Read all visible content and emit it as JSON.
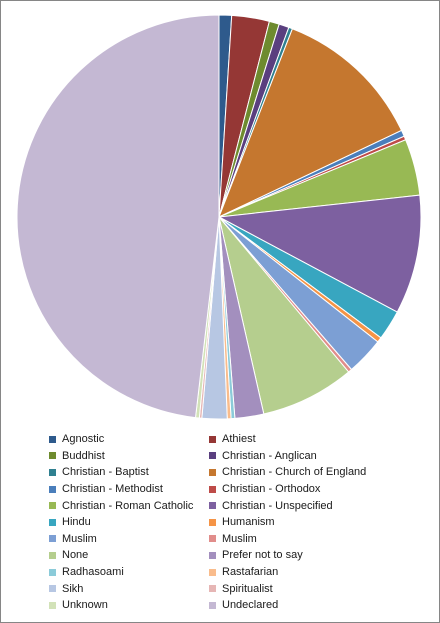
{
  "chart_data": {
    "type": "pie",
    "title": "",
    "legend_position": "bottom",
    "slices": [
      {
        "label": "Agnostic",
        "value": 1.0,
        "color": "#2E5A8C"
      },
      {
        "label": "Athiest",
        "value": 3.0,
        "color": "#953735"
      },
      {
        "label": "Buddhist",
        "value": 0.8,
        "color": "#6E8B2E"
      },
      {
        "label": "Christian - Anglican",
        "value": 0.8,
        "color": "#5A3F7F"
      },
      {
        "label": "Christian - Baptist",
        "value": 0.3,
        "color": "#2F8090"
      },
      {
        "label": "Christian - Church of England",
        "value": 12.0,
        "color": "#C5772F"
      },
      {
        "label": "Christian - Methodist",
        "value": 0.5,
        "color": "#4A7EBB"
      },
      {
        "label": "Christian - Orthodox",
        "value": 0.3,
        "color": "#BE4B48"
      },
      {
        "label": "Christian - Roman Catholic",
        "value": 4.5,
        "color": "#98B954"
      },
      {
        "label": "Christian - Unspecified",
        "value": 9.5,
        "color": "#7D60A0"
      },
      {
        "label": "Hindu",
        "value": 2.4,
        "color": "#38A6C0"
      },
      {
        "label": "Humanism",
        "value": 0.4,
        "color": "#F59446"
      },
      {
        "label": "Muslim",
        "value": 3.0,
        "color": "#7C9FD4"
      },
      {
        "label": "Muslim",
        "value": 0.3,
        "color": "#E18D8B"
      },
      {
        "label": "None",
        "value": 7.5,
        "color": "#B5CE8E"
      },
      {
        "label": "Prefer not to say",
        "value": 2.3,
        "color": "#A38FBE"
      },
      {
        "label": "Radhasoami",
        "value": 0.3,
        "color": "#8BCBD9"
      },
      {
        "label": "Rastafarian",
        "value": 0.3,
        "color": "#F9BC8C"
      },
      {
        "label": "Sikh",
        "value": 2.0,
        "color": "#B7C7E3"
      },
      {
        "label": "Spiritualist",
        "value": 0.2,
        "color": "#E6B6B5"
      },
      {
        "label": "Unknown",
        "value": 0.3,
        "color": "#D2E2B8"
      },
      {
        "label": "Undeclared",
        "value": 48.0,
        "color": "#C4B8D3"
      }
    ]
  }
}
